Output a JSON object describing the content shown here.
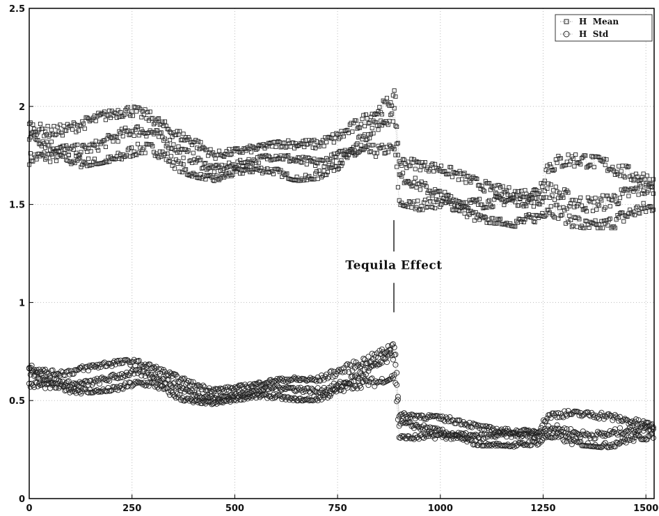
{
  "chart_data": {
    "type": "scatter",
    "title": "",
    "xlabel": "",
    "ylabel": "",
    "xlim": [
      0,
      1520
    ],
    "ylim": [
      0,
      2.5
    ],
    "xticks": [
      0,
      250,
      500,
      750,
      1000,
      1250,
      1500
    ],
    "yticks": [
      0,
      0.5,
      1,
      1.5,
      2,
      2.5
    ],
    "xtick_labels": [
      "0",
      "250",
      "500",
      "750",
      "1000",
      "1250",
      "1500"
    ],
    "ytick_labels": [
      "0",
      "0.5",
      "1",
      "1.5",
      "2",
      "2.5"
    ],
    "grid": true,
    "legend_position": "top-right",
    "annotation": {
      "text": "Tequila Effect",
      "x": 887,
      "y": 1.0
    },
    "series": [
      {
        "name": "H  Mean",
        "marker": "square",
        "bands": {
          "x": [
            0,
            50,
            100,
            150,
            200,
            250,
            300,
            350,
            400,
            450,
            500,
            550,
            600,
            650,
            700,
            750,
            800,
            850,
            890,
            900,
            950,
            1000,
            1050,
            1100,
            1150,
            1200,
            1240,
            1260,
            1300,
            1350,
            1400,
            1450,
            1500,
            1520
          ],
          "upper": [
            1.98,
            1.95,
            1.95,
            1.96,
            1.98,
            2.0,
            1.98,
            1.93,
            1.9,
            1.8,
            1.8,
            1.8,
            1.82,
            1.83,
            1.85,
            1.92,
            2.0,
            2.05,
            2.1,
            1.75,
            1.72,
            1.7,
            1.68,
            1.66,
            1.64,
            1.62,
            1.62,
            1.75,
            1.76,
            1.75,
            1.74,
            1.73,
            1.72,
            1.68
          ],
          "lower": [
            1.7,
            1.68,
            1.68,
            1.7,
            1.72,
            1.73,
            1.72,
            1.68,
            1.64,
            1.62,
            1.63,
            1.64,
            1.65,
            1.62,
            1.63,
            1.65,
            1.7,
            1.75,
            1.78,
            1.5,
            1.47,
            1.45,
            1.43,
            1.41,
            1.4,
            1.38,
            1.38,
            1.4,
            1.39,
            1.38,
            1.38,
            1.38,
            1.4,
            1.44
          ]
        }
      },
      {
        "name": "H  Std",
        "marker": "circle",
        "bands": {
          "x": [
            0,
            50,
            100,
            150,
            200,
            250,
            300,
            350,
            400,
            450,
            500,
            550,
            600,
            650,
            700,
            750,
            800,
            850,
            890,
            900,
            950,
            1000,
            1050,
            1100,
            1150,
            1200,
            1240,
            1260,
            1300,
            1350,
            1400,
            1450,
            1500,
            1520
          ],
          "upper": [
            0.72,
            0.68,
            0.68,
            0.69,
            0.7,
            0.71,
            0.69,
            0.66,
            0.62,
            0.58,
            0.58,
            0.59,
            0.61,
            0.62,
            0.63,
            0.7,
            0.75,
            0.78,
            0.82,
            0.44,
            0.43,
            0.42,
            0.41,
            0.39,
            0.38,
            0.37,
            0.37,
            0.45,
            0.45,
            0.44,
            0.44,
            0.43,
            0.42,
            0.4
          ],
          "lower": [
            0.56,
            0.54,
            0.53,
            0.54,
            0.55,
            0.56,
            0.55,
            0.51,
            0.49,
            0.48,
            0.49,
            0.5,
            0.51,
            0.5,
            0.5,
            0.51,
            0.54,
            0.58,
            0.62,
            0.31,
            0.3,
            0.29,
            0.28,
            0.27,
            0.27,
            0.26,
            0.26,
            0.28,
            0.28,
            0.27,
            0.26,
            0.27,
            0.28,
            0.3
          ]
        }
      }
    ]
  }
}
